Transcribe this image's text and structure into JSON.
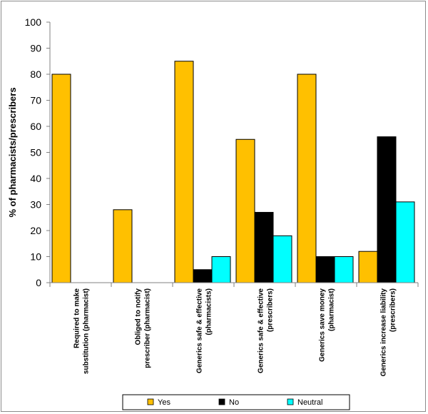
{
  "chart_data": {
    "type": "bar",
    "title": "",
    "xlabel": "",
    "ylabel": "% of pharmacists/prescribers",
    "ylim": [
      0,
      100
    ],
    "yticks": [
      0,
      10,
      20,
      30,
      40,
      50,
      60,
      70,
      80,
      90,
      100
    ],
    "grid": false,
    "legend_position": "bottom",
    "categories": [
      [
        "Required to make",
        "substitution (pharmacist)"
      ],
      [
        "Obliged to notify",
        "prescriber (pharmacist)"
      ],
      [
        "Generics safe & effective",
        "(pharmacists)"
      ],
      [
        "Generics safe & effective",
        "(prescribers)"
      ],
      [
        "Generics save  money",
        "(pharmacist)"
      ],
      [
        "Generics increase liability",
        "(prescribers)"
      ]
    ],
    "series": [
      {
        "name": "Yes",
        "color": "#FFC000",
        "values": [
          80,
          28,
          85,
          55,
          80,
          12
        ]
      },
      {
        "name": "No",
        "color": "#000000",
        "values": [
          null,
          null,
          5,
          27,
          10,
          56
        ]
      },
      {
        "name": "Neutral",
        "color": "#00FFFF",
        "values": [
          null,
          null,
          10,
          18,
          10,
          31
        ]
      }
    ]
  }
}
